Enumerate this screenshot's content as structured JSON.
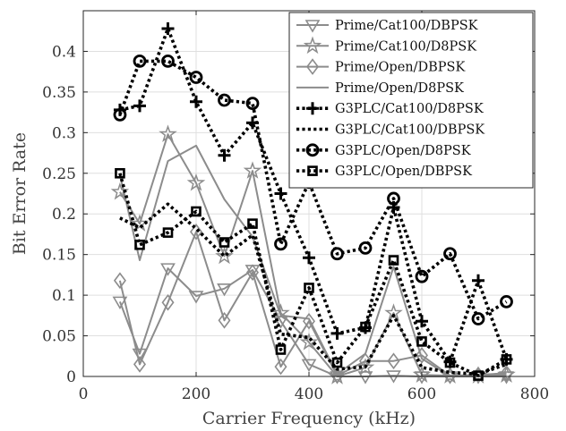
{
  "chart_data": {
    "type": "line",
    "title": "",
    "xlabel": "Carrier Frequency (kHz)",
    "ylabel": "Bit Error Rate",
    "xlim": [
      0,
      800
    ],
    "ylim": [
      0,
      0.45
    ],
    "x_ticks": [
      "0",
      "200",
      "400",
      "600",
      "800"
    ],
    "y_ticks": [
      "0",
      "0.05",
      "0.1",
      "0.15",
      "0.2",
      "0.25",
      "0.3",
      "0.35",
      "0.4"
    ],
    "grid": true,
    "legend_position": "top-right",
    "series": [
      {
        "name": "Prime/Cat100/DBPSK",
        "color": "#8c8c8c",
        "line": "solid",
        "marker": "triangle-down-icon",
        "x": [
          65,
          100,
          150,
          200,
          250,
          300,
          350,
          400,
          450,
          500,
          550,
          600,
          650,
          700,
          750
        ],
        "y": [
          0.092,
          0.028,
          0.133,
          0.099,
          0.108,
          0.131,
          0.068,
          0.015,
          0.0,
          0.0,
          0.001,
          0.0,
          0.0,
          0.0,
          0.0
        ]
      },
      {
        "name": "Prime/Cat100/D8PSK",
        "color": "#8c8c8c",
        "line": "solid",
        "marker": "star-icon",
        "x": [
          65,
          100,
          150,
          200,
          250,
          300,
          350,
          400,
          450,
          500,
          550,
          600,
          650,
          700,
          750
        ],
        "y": [
          0.227,
          0.188,
          0.298,
          0.238,
          0.148,
          0.253,
          0.078,
          0.042,
          0.0,
          0.011,
          0.078,
          0.002,
          0.001,
          0.001,
          0.002
        ]
      },
      {
        "name": "Prime/Open/DBPSK",
        "color": "#8c8c8c",
        "line": "solid",
        "marker": "diamond-icon",
        "x": [
          65,
          100,
          150,
          200,
          250,
          300,
          350,
          400,
          450,
          500,
          550,
          600,
          650,
          700,
          750
        ],
        "y": [
          0.118,
          0.015,
          0.091,
          0.178,
          0.069,
          0.128,
          0.012,
          0.068,
          0.001,
          0.019,
          0.019,
          0.026,
          0.001,
          0.002,
          0.004
        ]
      },
      {
        "name": "Prime/Open/D8PSK",
        "color": "#8c8c8c",
        "line": "solid",
        "marker": "none",
        "x": [
          65,
          100,
          150,
          200,
          250,
          300,
          350,
          400,
          450,
          500,
          550,
          600,
          650,
          700,
          750
        ],
        "y": [
          0.248,
          0.143,
          0.265,
          0.284,
          0.218,
          0.172,
          0.075,
          0.071,
          0.003,
          0.028,
          0.135,
          0.022,
          0.0,
          0.0,
          0.005
        ]
      },
      {
        "name": "G3PLC/Cat100/D8PSK",
        "color": "#000000",
        "line": "dotted",
        "marker": "plus-icon",
        "x": [
          65,
          100,
          150,
          200,
          250,
          300,
          350,
          400,
          450,
          500,
          550,
          600,
          650,
          700,
          750
        ],
        "y": [
          0.328,
          0.333,
          0.428,
          0.338,
          0.272,
          0.312,
          0.225,
          0.146,
          0.053,
          0.06,
          0.208,
          0.068,
          0.018,
          0.118,
          0.021
        ]
      },
      {
        "name": "G3PLC/Cat100/DBPSK",
        "color": "#000000",
        "line": "dotted",
        "marker": "none",
        "x": [
          65,
          100,
          150,
          200,
          250,
          300,
          350,
          400,
          450,
          500,
          550,
          600,
          650,
          700,
          750
        ],
        "y": [
          0.195,
          0.183,
          0.212,
          0.182,
          0.148,
          0.174,
          0.052,
          0.048,
          0.009,
          0.012,
          0.075,
          0.011,
          0.005,
          0.003,
          0.015
        ]
      },
      {
        "name": "G3PLC/Open/D8PSK",
        "color": "#000000",
        "line": "dotted",
        "marker": "circle-icon",
        "x": [
          65,
          100,
          150,
          200,
          250,
          300,
          350,
          400,
          450,
          500,
          550,
          600,
          650,
          700,
          750
        ],
        "y": [
          0.322,
          0.388,
          0.388,
          0.368,
          0.34,
          0.336,
          0.163,
          0.239,
          0.151,
          0.158,
          0.219,
          0.123,
          0.151,
          0.071,
          0.092
        ]
      },
      {
        "name": "G3PLC/Open/DBPSK",
        "color": "#000000",
        "line": "dotted",
        "marker": "square-icon",
        "x": [
          65,
          100,
          150,
          200,
          250,
          300,
          350,
          400,
          450,
          500,
          550,
          600,
          650,
          700,
          750
        ],
        "y": [
          0.25,
          0.162,
          0.177,
          0.203,
          0.165,
          0.188,
          0.033,
          0.109,
          0.017,
          0.061,
          0.143,
          0.043,
          0.017,
          0.001,
          0.021
        ]
      }
    ]
  }
}
